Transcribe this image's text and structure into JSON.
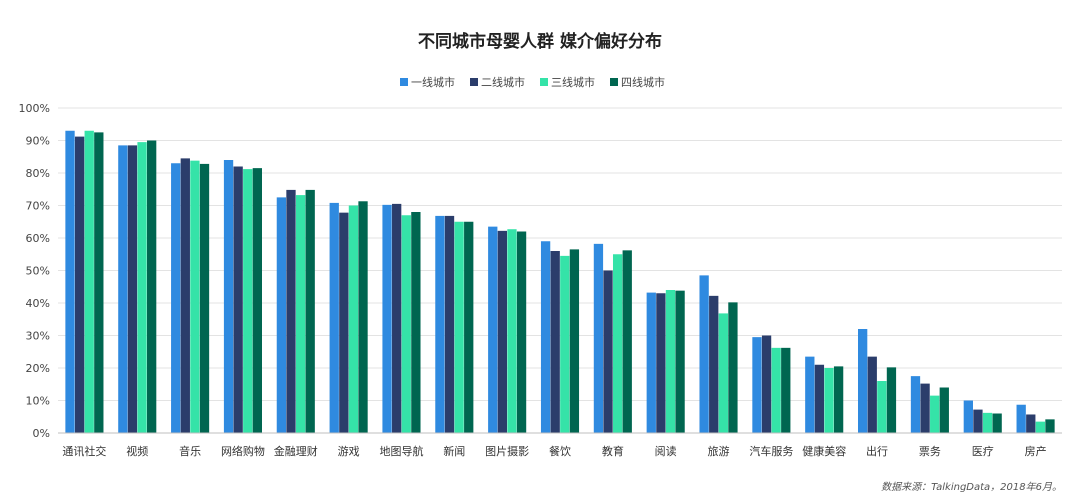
{
  "chart_data": {
    "type": "bar",
    "title": "不同城市母婴人群  媒介偏好分布",
    "source": "数据来源：TalkingData，2018年6月。",
    "ylim": [
      0,
      100
    ],
    "yticks": [
      "0%",
      "10%",
      "20%",
      "30%",
      "40%",
      "50%",
      "60%",
      "70%",
      "80%",
      "90%",
      "100%"
    ],
    "grid": true,
    "legend_position": "top-center",
    "categories": [
      "通讯社交",
      "视频",
      "音乐",
      "网络购物",
      "金融理财",
      "游戏",
      "地图导航",
      "新闻",
      "图片摄影",
      "餐饮",
      "教育",
      "阅读",
      "旅游",
      "汽车服务",
      "健康美容",
      "出行",
      "票务",
      "医疗",
      "房产"
    ],
    "series": [
      {
        "name": "一线城市",
        "color": "#2f8ae0",
        "values": [
          93,
          88.5,
          83,
          84,
          72.5,
          70.8,
          70.2,
          66.8,
          63.5,
          59,
          58.2,
          43.2,
          48.5,
          29.5,
          23.5,
          32,
          17.5,
          10,
          8.7
        ]
      },
      {
        "name": "二线城市",
        "color": "#2b3d6b",
        "values": [
          91.2,
          88.5,
          84.5,
          82,
          74.8,
          67.8,
          70.5,
          66.8,
          62.2,
          56,
          50,
          43,
          42.2,
          30,
          21,
          23.5,
          15.2,
          7.2,
          5.7
        ]
      },
      {
        "name": "三线城市",
        "color": "#35e3a8",
        "values": [
          93,
          89.5,
          83.8,
          81.2,
          73.2,
          70,
          67,
          65,
          62.7,
          54.5,
          55,
          44,
          36.8,
          26.2,
          20,
          16,
          11.5,
          6.2,
          3.5
        ]
      },
      {
        "name": "四线城市",
        "color": "#006650",
        "values": [
          92.5,
          90,
          82.8,
          81.5,
          74.8,
          71.3,
          68,
          65,
          62,
          56.5,
          56.2,
          43.8,
          40.2,
          26.2,
          20.5,
          20.2,
          14,
          6,
          4.2
        ]
      }
    ]
  }
}
